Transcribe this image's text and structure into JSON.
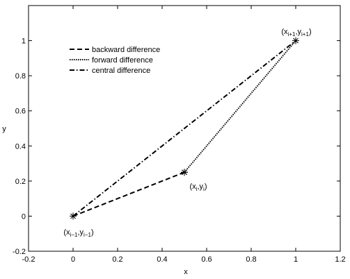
{
  "chart_data": {
    "type": "line",
    "xlabel": "x",
    "ylabel": "y",
    "xlim": [
      -0.2,
      1.2
    ],
    "xticks": [
      -0.2,
      0,
      0.2,
      0.4,
      0.6,
      0.8,
      1,
      1.2
    ],
    "ylim": [
      -0.2,
      1.2
    ],
    "yticks": [
      -0.2,
      0,
      0.2,
      0.4,
      0.6,
      0.8,
      1
    ],
    "grid": false,
    "legend": "upper left",
    "series": [
      {
        "name": "backward difference",
        "color": "#000000",
        "style": "dashed",
        "marker": "*",
        "x": [
          0,
          0.5
        ],
        "values": [
          0,
          0.25
        ]
      },
      {
        "name": "forward difference",
        "color": "#000000",
        "style": "dotted",
        "marker": "*",
        "x": [
          0.5,
          1
        ],
        "values": [
          0.25,
          1
        ]
      },
      {
        "name": "central difference",
        "color": "#000000",
        "style": "dashdot",
        "marker": "none",
        "x": [
          0,
          1
        ],
        "values": [
          0,
          1
        ]
      }
    ],
    "annotations": [
      {
        "parts": [
          "(x",
          "i−1",
          ",y",
          "i−1",
          ")"
        ]
      },
      {
        "parts": [
          "(x",
          "i",
          ",y",
          "i",
          ")"
        ]
      },
      {
        "parts": [
          "(x",
          "i+1",
          ",y",
          "i+1",
          ")"
        ]
      }
    ]
  }
}
